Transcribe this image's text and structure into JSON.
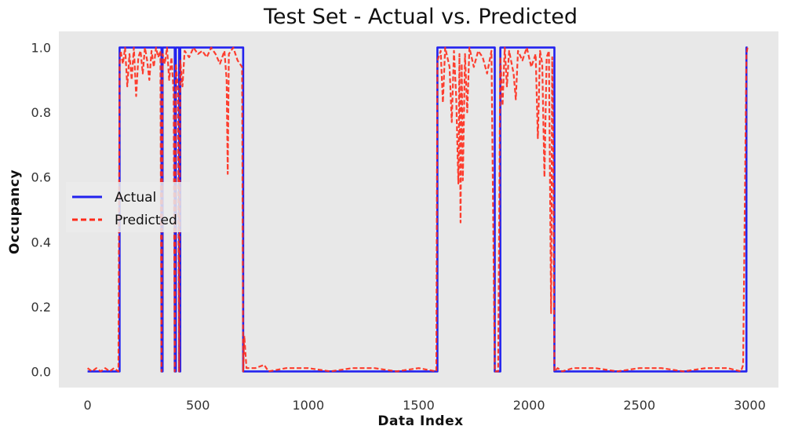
{
  "chart_data": {
    "type": "line",
    "title": "Test Set - Actual vs. Predicted",
    "xlabel": "Data Index",
    "ylabel": "Occupancy",
    "xlim": [
      -130,
      3130
    ],
    "ylim": [
      -0.05,
      1.05
    ],
    "x_ticks": [
      0,
      500,
      1000,
      1500,
      2000,
      2500,
      3000
    ],
    "x_tick_labels": [
      "0",
      "500",
      "1000",
      "1500",
      "2000",
      "2500",
      "3000"
    ],
    "y_ticks": [
      0.0,
      0.2,
      0.4,
      0.6,
      0.8,
      1.0
    ],
    "y_tick_labels": [
      "0.0",
      "0.2",
      "0.4",
      "0.6",
      "0.8",
      "1.0"
    ],
    "grid": false,
    "legend": "center-left",
    "background_color": "#e8e8e8",
    "series": [
      {
        "name": "Actual",
        "color": "#2222ee",
        "style": "solid",
        "points": [
          [
            0,
            0
          ],
          [
            145,
            0
          ],
          [
            145,
            1
          ],
          [
            335,
            1
          ],
          [
            335,
            0
          ],
          [
            340,
            0
          ],
          [
            340,
            1
          ],
          [
            395,
            1
          ],
          [
            395,
            0
          ],
          [
            400,
            0
          ],
          [
            400,
            1
          ],
          [
            415,
            1
          ],
          [
            415,
            0
          ],
          [
            420,
            0
          ],
          [
            420,
            1
          ],
          [
            705,
            1
          ],
          [
            705,
            0
          ],
          [
            1585,
            0
          ],
          [
            1585,
            1
          ],
          [
            1845,
            1
          ],
          [
            1845,
            0
          ],
          [
            1870,
            0
          ],
          [
            1870,
            1
          ],
          [
            2115,
            1
          ],
          [
            2115,
            0
          ],
          [
            2985,
            0
          ],
          [
            2985,
            1
          ],
          [
            2990,
            1
          ]
        ]
      },
      {
        "name": "Predicted",
        "color": "#ff2a1a",
        "style": "dashed",
        "points": [
          [
            0,
            0.01
          ],
          [
            20,
            0.0
          ],
          [
            40,
            0.01
          ],
          [
            60,
            0.0
          ],
          [
            80,
            0.01
          ],
          [
            100,
            0.0
          ],
          [
            120,
            0.01
          ],
          [
            140,
            0.0
          ],
          [
            145,
            0.95
          ],
          [
            150,
            0.99
          ],
          [
            160,
            0.95
          ],
          [
            170,
            1.0
          ],
          [
            180,
            0.88
          ],
          [
            190,
            0.98
          ],
          [
            200,
            0.9
          ],
          [
            210,
            1.0
          ],
          [
            220,
            0.85
          ],
          [
            230,
            0.97
          ],
          [
            240,
            0.99
          ],
          [
            250,
            0.92
          ],
          [
            260,
            1.0
          ],
          [
            270,
            0.96
          ],
          [
            280,
            0.9
          ],
          [
            290,
            0.99
          ],
          [
            300,
            0.94
          ],
          [
            310,
            1.0
          ],
          [
            320,
            0.97
          ],
          [
            330,
            0.99
          ],
          [
            335,
            0.0
          ],
          [
            340,
            0.98
          ],
          [
            350,
            0.95
          ],
          [
            360,
            1.0
          ],
          [
            370,
            0.9
          ],
          [
            380,
            0.97
          ],
          [
            390,
            0.86
          ],
          [
            395,
            0.0
          ],
          [
            400,
            0.95
          ],
          [
            410,
            0.87
          ],
          [
            415,
            0.0
          ],
          [
            420,
            0.96
          ],
          [
            430,
            0.88
          ],
          [
            440,
            0.99
          ],
          [
            460,
            0.97
          ],
          [
            480,
            1.0
          ],
          [
            500,
            0.98
          ],
          [
            520,
            0.99
          ],
          [
            540,
            0.97
          ],
          [
            560,
            1.0
          ],
          [
            580,
            0.98
          ],
          [
            600,
            0.95
          ],
          [
            620,
            0.99
          ],
          [
            630,
            0.9
          ],
          [
            635,
            0.61
          ],
          [
            640,
            0.98
          ],
          [
            660,
            1.0
          ],
          [
            680,
            0.96
          ],
          [
            700,
            0.94
          ],
          [
            705,
            0.0
          ],
          [
            710,
            0.11
          ],
          [
            720,
            0.01
          ],
          [
            760,
            0.01
          ],
          [
            800,
            0.02
          ],
          [
            820,
            0.0
          ],
          [
            900,
            0.01
          ],
          [
            1000,
            0.01
          ],
          [
            1100,
            0.0
          ],
          [
            1200,
            0.01
          ],
          [
            1300,
            0.01
          ],
          [
            1400,
            0.0
          ],
          [
            1500,
            0.01
          ],
          [
            1580,
            0.0
          ],
          [
            1585,
            0.96
          ],
          [
            1600,
            0.99
          ],
          [
            1610,
            0.83
          ],
          [
            1620,
            1.0
          ],
          [
            1640,
            0.94
          ],
          [
            1650,
            0.77
          ],
          [
            1660,
            0.99
          ],
          [
            1670,
            0.85
          ],
          [
            1680,
            0.58
          ],
          [
            1685,
            0.98
          ],
          [
            1690,
            0.46
          ],
          [
            1695,
            0.95
          ],
          [
            1700,
            0.59
          ],
          [
            1710,
            0.98
          ],
          [
            1720,
            0.8
          ],
          [
            1730,
            1.0
          ],
          [
            1750,
            0.94
          ],
          [
            1770,
            0.99
          ],
          [
            1790,
            0.97
          ],
          [
            1810,
            0.92
          ],
          [
            1830,
            0.99
          ],
          [
            1845,
            0.0
          ],
          [
            1860,
            0.0
          ],
          [
            1870,
            0.97
          ],
          [
            1880,
            0.82
          ],
          [
            1890,
            1.0
          ],
          [
            1900,
            0.88
          ],
          [
            1910,
            0.99
          ],
          [
            1930,
            0.92
          ],
          [
            1940,
            0.84
          ],
          [
            1950,
            0.99
          ],
          [
            1970,
            0.96
          ],
          [
            1990,
            1.0
          ],
          [
            2010,
            0.94
          ],
          [
            2030,
            0.98
          ],
          [
            2040,
            0.72
          ],
          [
            2050,
            0.99
          ],
          [
            2060,
            0.95
          ],
          [
            2070,
            0.6
          ],
          [
            2080,
            0.97
          ],
          [
            2090,
            0.99
          ],
          [
            2100,
            0.18
          ],
          [
            2105,
            0.97
          ],
          [
            2110,
            0.66
          ],
          [
            2115,
            0.0
          ],
          [
            2130,
            0.01
          ],
          [
            2150,
            0.0
          ],
          [
            2200,
            0.01
          ],
          [
            2300,
            0.01
          ],
          [
            2400,
            0.0
          ],
          [
            2500,
            0.01
          ],
          [
            2600,
            0.01
          ],
          [
            2700,
            0.0
          ],
          [
            2800,
            0.01
          ],
          [
            2900,
            0.01
          ],
          [
            2960,
            0.0
          ],
          [
            2970,
            0.02
          ],
          [
            2985,
            0.98
          ],
          [
            2990,
            1.0
          ]
        ]
      }
    ]
  }
}
